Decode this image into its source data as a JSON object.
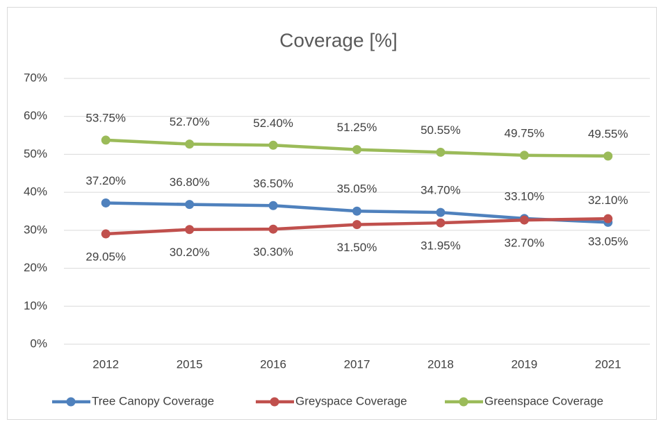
{
  "chart_data": {
    "type": "line",
    "title": "Coverage [%]",
    "categories": [
      "2012",
      "2015",
      "2016",
      "2017",
      "2018",
      "2019",
      "2021"
    ],
    "series": [
      {
        "name": "Tree Canopy Coverage",
        "color": "#4f81bd",
        "values": [
          37.2,
          36.8,
          36.5,
          35.05,
          34.7,
          33.1,
          32.1
        ],
        "value_labels": [
          "37.20%",
          "36.80%",
          "36.50%",
          "35.05%",
          "34.70%",
          "33.10%",
          "32.10%"
        ]
      },
      {
        "name": "Greyspace Coverage",
        "color": "#c0504d",
        "values": [
          29.05,
          30.2,
          30.3,
          31.5,
          31.95,
          32.7,
          33.05
        ],
        "value_labels": [
          "29.05%",
          "30.20%",
          "30.30%",
          "31.50%",
          "31.95%",
          "32.70%",
          "33.05%"
        ]
      },
      {
        "name": "Greenspace Coverage",
        "color": "#9bbb59",
        "values": [
          53.75,
          52.7,
          52.4,
          51.25,
          50.55,
          49.75,
          49.55
        ],
        "value_labels": [
          "53.75%",
          "52.70%",
          "52.40%",
          "51.25%",
          "50.55%",
          "49.75%",
          "49.55%"
        ]
      }
    ],
    "ylim": [
      0,
      70
    ],
    "yticks": [
      {
        "value": 0,
        "label": "0%"
      },
      {
        "value": 10,
        "label": "10%"
      },
      {
        "value": 20,
        "label": "20%"
      },
      {
        "value": 30,
        "label": "30%"
      },
      {
        "value": 40,
        "label": "40%"
      },
      {
        "value": 50,
        "label": "50%"
      },
      {
        "value": 60,
        "label": "60%"
      },
      {
        "value": 70,
        "label": "70%"
      }
    ],
    "grid": true,
    "legend": "bottom"
  }
}
